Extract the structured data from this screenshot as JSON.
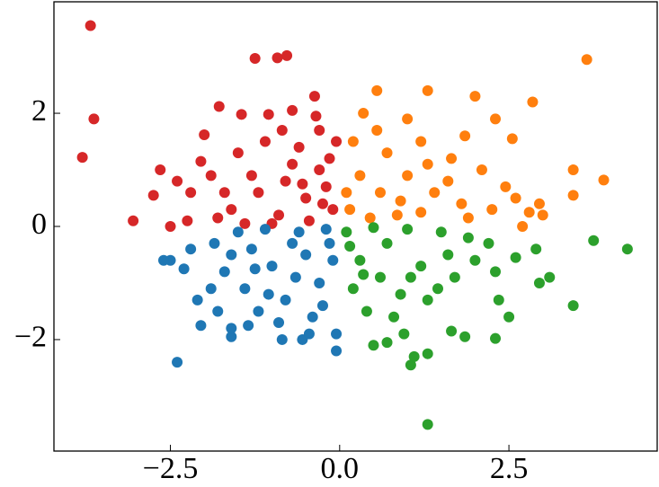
{
  "chart_data": {
    "type": "scatter",
    "xlim": [
      -4.22,
      4.69
    ],
    "ylim": [
      -3.97,
      3.97
    ],
    "xticks": [
      {
        "value": -2.5,
        "label": "−2.5"
      },
      {
        "value": 0,
        "label": "0.0"
      },
      2.5
    ],
    "yticks": [
      {
        "value": -2,
        "label": "−2"
      },
      0,
      2
    ],
    "series": [
      {
        "color": "#d62728",
        "x": [
          -3.68,
          -3.63,
          -3.8,
          -3.05,
          -1.25,
          -0.92,
          -0.78,
          -0.37,
          -1.78,
          -1.45,
          -2.0,
          -2.65,
          -2.75,
          -2.5,
          -2.25,
          -1.8,
          -1.05,
          -0.7,
          -0.35,
          -0.05,
          -0.1,
          -0.5,
          -0.8,
          -1.2,
          -0.3,
          -0.6,
          -1.5,
          -1.9,
          -2.2,
          -1.6,
          -0.9,
          -0.2,
          -1.1,
          -0.45,
          -2.05,
          -1.3,
          -0.7,
          -0.15,
          -2.4,
          -1.7,
          -1.0,
          -0.55,
          -0.25,
          -1.4,
          -0.85,
          -0.3
        ],
        "values": [
          3.55,
          1.9,
          1.22,
          0.1,
          2.97,
          2.98,
          3.02,
          2.3,
          2.12,
          1.98,
          1.62,
          1.0,
          0.55,
          0.0,
          0.1,
          0.15,
          1.98,
          2.05,
          1.95,
          1.5,
          0.3,
          0.5,
          0.8,
          0.6,
          1.0,
          1.4,
          1.3,
          0.9,
          0.6,
          0.3,
          0.2,
          0.7,
          1.5,
          0.1,
          1.15,
          0.9,
          1.1,
          1.2,
          0.8,
          0.6,
          0.05,
          0.75,
          0.4,
          0.05,
          1.7,
          1.7
        ]
      },
      {
        "color": "#1f77b4",
        "x": [
          -2.4,
          -2.5,
          -2.6,
          -2.3,
          -2.05,
          -2.1,
          -1.6,
          -1.6,
          -1.35,
          -0.85,
          -0.55,
          -0.05,
          -0.05,
          -2.2,
          -1.85,
          -1.5,
          -1.1,
          -0.6,
          -0.2,
          -1.7,
          -1.4,
          -1.0,
          -0.5,
          -0.3,
          -0.8,
          -1.2,
          -0.4,
          -1.9,
          -0.1,
          -0.7,
          -1.3,
          -1.6,
          -0.9,
          -0.25,
          -0.65,
          -1.05,
          -1.8,
          -0.15,
          -1.25,
          -0.45
        ],
        "values": [
          -2.4,
          -0.6,
          -0.6,
          -0.75,
          -1.75,
          -1.3,
          -1.95,
          -1.8,
          -1.75,
          -2.0,
          -2.0,
          -2.2,
          -1.9,
          -0.4,
          -0.3,
          -0.1,
          -0.05,
          -0.1,
          -0.05,
          -0.8,
          -1.1,
          -0.7,
          -0.5,
          -1.0,
          -1.3,
          -1.5,
          -1.6,
          -1.1,
          -0.6,
          -0.3,
          -0.4,
          -0.5,
          -1.7,
          -1.4,
          -0.9,
          -1.2,
          -1.5,
          -0.3,
          -0.75,
          -1.9
        ]
      },
      {
        "color": "#ff7f0e",
        "x": [
          3.65,
          0.55,
          1.3,
          2.0,
          2.85,
          2.3,
          0.35,
          1.0,
          1.85,
          2.55,
          3.45,
          3.9,
          3.45,
          2.95,
          3.0,
          2.8,
          2.45,
          2.1,
          1.65,
          1.2,
          0.7,
          0.3,
          0.15,
          0.6,
          1.0,
          1.4,
          1.8,
          2.25,
          0.45,
          0.85,
          1.2,
          1.6,
          0.2,
          0.55,
          0.9,
          2.6,
          1.3,
          0.1,
          1.9,
          2.7
        ],
        "values": [
          2.95,
          2.4,
          2.4,
          2.3,
          2.2,
          1.9,
          2.0,
          1.9,
          1.6,
          1.55,
          1.0,
          0.82,
          0.55,
          0.4,
          0.2,
          0.25,
          0.7,
          1.0,
          1.2,
          1.5,
          1.3,
          0.9,
          0.3,
          0.6,
          0.9,
          0.6,
          0.4,
          0.3,
          0.15,
          0.2,
          0.25,
          0.8,
          1.5,
          1.7,
          0.45,
          0.5,
          1.1,
          0.6,
          0.15,
          0.0
        ]
      },
      {
        "color": "#2ca02c",
        "x": [
          1.3,
          1.05,
          1.1,
          1.3,
          0.5,
          0.7,
          1.65,
          1.85,
          2.3,
          2.5,
          3.45,
          2.35,
          2.95,
          3.1,
          2.9,
          3.75,
          4.25,
          2.6,
          2.2,
          1.9,
          1.5,
          1.0,
          0.5,
          0.1,
          0.3,
          0.6,
          0.9,
          1.2,
          1.6,
          0.2,
          0.4,
          0.8,
          1.3,
          1.7,
          2.0,
          0.15,
          0.7,
          1.05,
          0.35,
          0.95,
          2.3,
          1.45
        ],
        "values": [
          -3.5,
          -2.45,
          -2.3,
          -2.25,
          -2.1,
          -2.05,
          -1.85,
          -1.95,
          -1.98,
          -1.6,
          -1.4,
          -1.3,
          -1.0,
          -0.9,
          -0.4,
          -0.25,
          -0.4,
          -0.55,
          -0.3,
          -0.2,
          -0.1,
          -0.05,
          -0.02,
          -0.1,
          -0.6,
          -0.9,
          -1.2,
          -0.7,
          -0.5,
          -1.1,
          -1.5,
          -1.6,
          -1.3,
          -0.9,
          -0.6,
          -0.35,
          -0.3,
          -0.9,
          -0.85,
          -1.9,
          -0.8,
          -1.1
        ]
      }
    ]
  }
}
